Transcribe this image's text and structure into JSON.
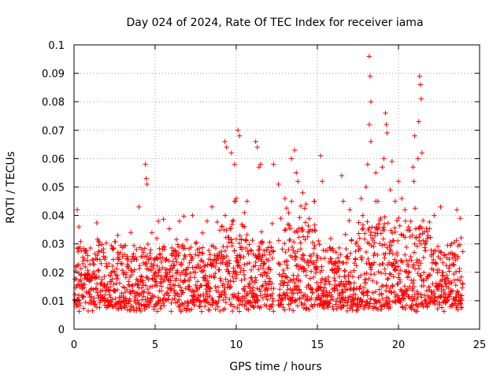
{
  "chart_data": {
    "type": "scatter",
    "title": "Day 024 of 2024, Rate Of TEC Index for receiver iama",
    "xlabel": "GPS time / hours",
    "ylabel": "ROTI / TECUs",
    "xlim": [
      0,
      25
    ],
    "ylim": [
      0,
      0.1
    ],
    "x_ticks": [
      "0",
      "5",
      "10",
      "15",
      "20",
      "25"
    ],
    "y_ticks": [
      "0",
      "0.01",
      "0.02",
      "0.03",
      "0.04",
      "0.05",
      "0.06",
      "0.07",
      "0.08",
      "0.09",
      "0.1"
    ],
    "grid": true,
    "marker": "+",
    "color": "#ff0000",
    "series": [
      {
        "points": [
          [
            0.2,
            0.042
          ],
          [
            0.3,
            0.036
          ],
          [
            1.5,
            0.031
          ],
          [
            2.7,
            0.033
          ],
          [
            3.5,
            0.034
          ],
          [
            4.0,
            0.043
          ],
          [
            4.4,
            0.058
          ],
          [
            4.45,
            0.053
          ],
          [
            4.5,
            0.051
          ],
          [
            5.2,
            0.038
          ],
          [
            6.5,
            0.038
          ],
          [
            7.3,
            0.04
          ],
          [
            8.2,
            0.038
          ],
          [
            8.5,
            0.043
          ],
          [
            9.3,
            0.066
          ],
          [
            9.4,
            0.064
          ],
          [
            9.7,
            0.062
          ],
          [
            9.9,
            0.058
          ],
          [
            10.1,
            0.07
          ],
          [
            10.2,
            0.068
          ],
          [
            10.0,
            0.046
          ],
          [
            10.5,
            0.041
          ],
          [
            11.2,
            0.066
          ],
          [
            11.3,
            0.064
          ],
          [
            11.5,
            0.058
          ],
          [
            11.4,
            0.057
          ],
          [
            12.3,
            0.058
          ],
          [
            12.6,
            0.051
          ],
          [
            13.0,
            0.046
          ],
          [
            13.4,
            0.06
          ],
          [
            13.6,
            0.063
          ],
          [
            13.7,
            0.055
          ],
          [
            13.8,
            0.052
          ],
          [
            14.1,
            0.048
          ],
          [
            14.3,
            0.044
          ],
          [
            14.8,
            0.045
          ],
          [
            15.2,
            0.061
          ],
          [
            15.3,
            0.052
          ],
          [
            16.5,
            0.054
          ],
          [
            16.6,
            0.045
          ],
          [
            17.0,
            0.042
          ],
          [
            17.7,
            0.046
          ],
          [
            17.8,
            0.04
          ],
          [
            18.0,
            0.05
          ],
          [
            18.1,
            0.058
          ],
          [
            18.2,
            0.096
          ],
          [
            18.25,
            0.089
          ],
          [
            18.3,
            0.08
          ],
          [
            18.2,
            0.072
          ],
          [
            18.3,
            0.066
          ],
          [
            18.6,
            0.055
          ],
          [
            19.0,
            0.057
          ],
          [
            19.1,
            0.06
          ],
          [
            19.2,
            0.076
          ],
          [
            19.25,
            0.072
          ],
          [
            19.3,
            0.069
          ],
          [
            19.5,
            0.049
          ],
          [
            19.6,
            0.059
          ],
          [
            19.8,
            0.045
          ],
          [
            20.0,
            0.052
          ],
          [
            20.2,
            0.046
          ],
          [
            20.4,
            0.042
          ],
          [
            20.9,
            0.057
          ],
          [
            20.95,
            0.052
          ],
          [
            21.0,
            0.068
          ],
          [
            21.2,
            0.06
          ],
          [
            21.25,
            0.073
          ],
          [
            21.3,
            0.089
          ],
          [
            21.35,
            0.086
          ],
          [
            21.4,
            0.081
          ],
          [
            21.45,
            0.062
          ],
          [
            22.2,
            0.04
          ],
          [
            22.6,
            0.043
          ],
          [
            23.6,
            0.042
          ],
          [
            23.8,
            0.039
          ]
        ]
      }
    ],
    "gap_hours": [
      12.3,
      12.6
    ]
  }
}
